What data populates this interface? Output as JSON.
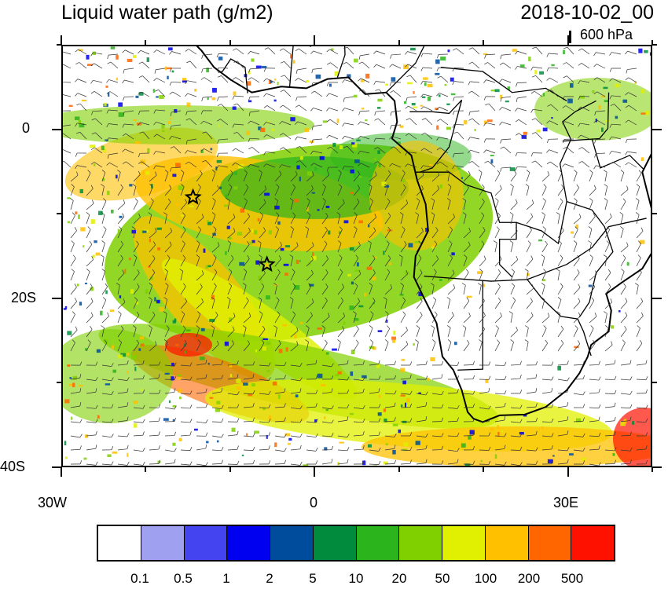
{
  "title": "Liquid water path (g/m2)",
  "timestamp": "2018-10-02_00",
  "reference_vector": {
    "label": "600 hPa"
  },
  "latitude_labels": [
    "0",
    "20S",
    "40S"
  ],
  "longitude_labels": [
    "30W",
    "0",
    "30E"
  ],
  "map_extent": {
    "lon_min": -30,
    "lon_max": 40,
    "lat_min": -40,
    "lat_max": 10
  },
  "markers": [
    {
      "name": "star-marker-1",
      "symbol": "star",
      "lon": -14.5,
      "lat": -8
    },
    {
      "name": "star-marker-2",
      "symbol": "star",
      "lon": -5.7,
      "lat": -16
    }
  ],
  "colorbar": {
    "colors": [
      "#ffffff",
      "#a0a0f0",
      "#4444f0",
      "#0000f0",
      "#004c9c",
      "#008c3c",
      "#2cb41c",
      "#80d000",
      "#e0f000",
      "#ffc000",
      "#ff6600",
      "#ff1100"
    ],
    "labels": [
      "0.1",
      "0.5",
      "1",
      "2",
      "5",
      "10",
      "20",
      "50",
      "100",
      "200",
      "500"
    ]
  }
}
